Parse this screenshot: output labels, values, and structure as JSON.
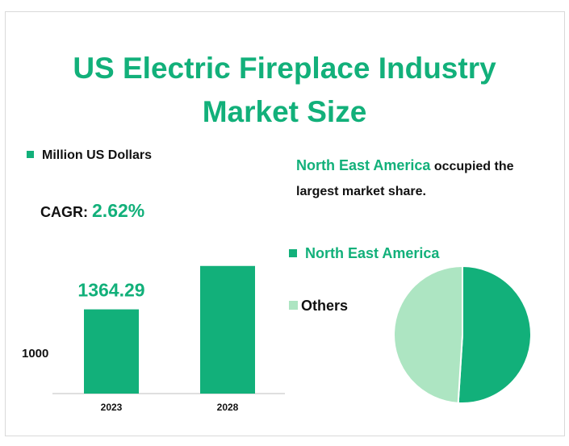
{
  "title_line1": "US Electric Fireplace Industry",
  "title_line2": "Market Size",
  "unit_legend": "Million US Dollars",
  "cagr_label": "CAGR:",
  "cagr_value": "2.62%",
  "description": {
    "highlight": "North East America",
    "rest": " occupied the largest market share."
  },
  "colors": {
    "accent": "#12b07a",
    "light": "#ade5c2",
    "axis": "#bfbfbf"
  },
  "chart_data": [
    {
      "type": "bar",
      "categories": [
        "2023",
        "2028"
      ],
      "values": [
        1364.29,
        1552
      ],
      "data_labels": [
        "1364.29",
        ""
      ],
      "ytick_labels": [
        "1000"
      ],
      "ylim": [
        1000,
        1600
      ],
      "legend": [
        "Million US Dollars"
      ]
    },
    {
      "type": "pie",
      "labels": [
        "North East America",
        "Others"
      ],
      "values": [
        51,
        49
      ],
      "colors": [
        "#12b07a",
        "#ade5c2"
      ]
    }
  ]
}
